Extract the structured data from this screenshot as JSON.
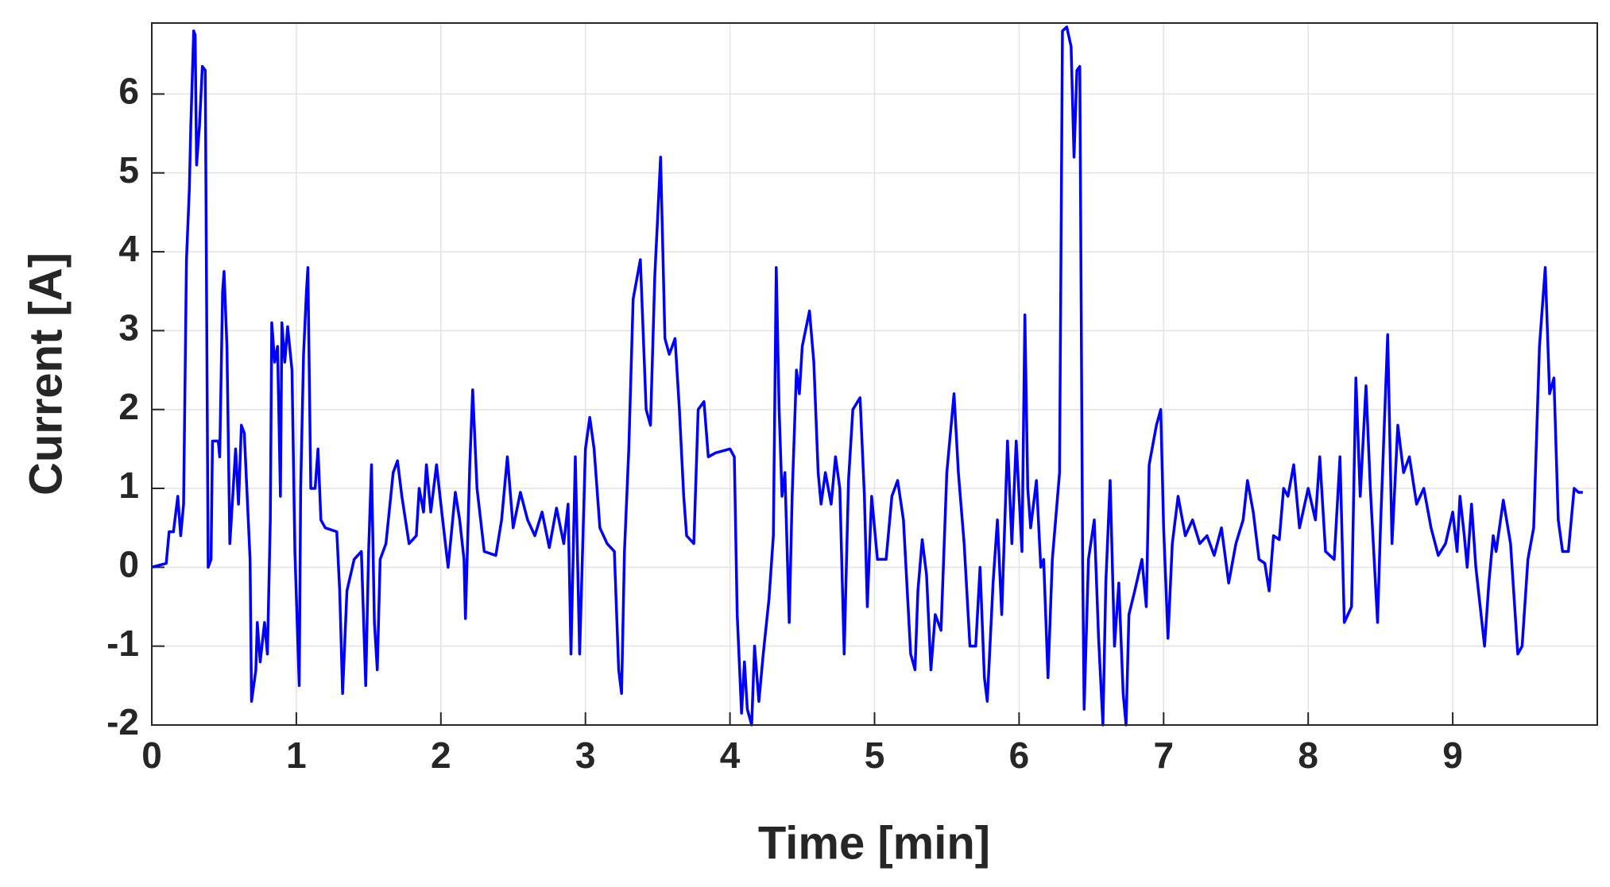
{
  "chart_data": {
    "type": "line",
    "x_label": "Time [min]",
    "y_label": "Current [A]",
    "xlim": [
      0,
      10
    ],
    "xticks": [
      0,
      1,
      2,
      3,
      4,
      5,
      6,
      7,
      8,
      9
    ],
    "ylim": [
      -2,
      6.9
    ],
    "yticks": [
      -2,
      -1,
      0,
      1,
      2,
      3,
      4,
      5,
      6
    ],
    "grid": true,
    "color": "#0000ff",
    "x": [
      0,
      0.1,
      0.12,
      0.15,
      0.18,
      0.2,
      0.22,
      0.24,
      0.26,
      0.27,
      0.29,
      0.3,
      0.31,
      0.33,
      0.35,
      0.37,
      0.39,
      0.41,
      0.42,
      0.46,
      0.47,
      0.49,
      0.5,
      0.52,
      0.54,
      0.56,
      0.58,
      0.6,
      0.62,
      0.64,
      0.66,
      0.68,
      0.69,
      0.72,
      0.73,
      0.75,
      0.78,
      0.8,
      0.82,
      0.83,
      0.85,
      0.87,
      0.89,
      0.9,
      0.92,
      0.94,
      0.97,
      0.99,
      1.02,
      1.03,
      1.05,
      1.07,
      1.08,
      1.1,
      1.13,
      1.15,
      1.17,
      1.2,
      1.28,
      1.3,
      1.32,
      1.35,
      1.4,
      1.45,
      1.48,
      1.5,
      1.52,
      1.54,
      1.56,
      1.58,
      1.62,
      1.67,
      1.7,
      1.73,
      1.78,
      1.83,
      1.85,
      1.88,
      1.9,
      1.93,
      1.97,
      2.0,
      2.05,
      2.1,
      2.13,
      2.16,
      2.17,
      2.2,
      2.22,
      2.25,
      2.3,
      2.38,
      2.42,
      2.46,
      2.5,
      2.55,
      2.6,
      2.65,
      2.7,
      2.75,
      2.8,
      2.85,
      2.88,
      2.9,
      2.93,
      2.96,
      3.0,
      3.03,
      3.06,
      3.1,
      3.15,
      3.2,
      3.23,
      3.25,
      3.27,
      3.3,
      3.33,
      3.38,
      3.42,
      3.45,
      3.48,
      3.52,
      3.55,
      3.58,
      3.62,
      3.65,
      3.68,
      3.7,
      3.75,
      3.78,
      3.82,
      3.85,
      3.9,
      4.0,
      4.03,
      4.05,
      4.08,
      4.1,
      4.12,
      4.15,
      4.17,
      4.2,
      4.23,
      4.27,
      4.3,
      4.32,
      4.34,
      4.36,
      4.38,
      4.41,
      4.43,
      4.46,
      4.48,
      4.5,
      4.55,
      4.58,
      4.61,
      4.63,
      4.66,
      4.7,
      4.73,
      4.76,
      4.79,
      4.82,
      4.85,
      4.9,
      4.93,
      4.95,
      4.98,
      5.02,
      5.08,
      5.12,
      5.16,
      5.2,
      5.25,
      5.28,
      5.3,
      5.33,
      5.36,
      5.39,
      5.42,
      5.46,
      5.5,
      5.55,
      5.58,
      5.62,
      5.66,
      5.7,
      5.73,
      5.76,
      5.78,
      5.82,
      5.85,
      5.88,
      5.92,
      5.95,
      5.98,
      6.02,
      6.04,
      6.06,
      6.08,
      6.12,
      6.15,
      6.17,
      6.2,
      6.23,
      6.28,
      6.3,
      6.33,
      6.36,
      6.38,
      6.4,
      6.42,
      6.44,
      6.45,
      6.48,
      6.52,
      6.55,
      6.58,
      6.6,
      6.63,
      6.66,
      6.69,
      6.72,
      6.74,
      6.76,
      6.8,
      6.85,
      6.88,
      6.9,
      6.95,
      6.98,
      7.0,
      7.03,
      7.06,
      7.1,
      7.15,
      7.2,
      7.25,
      7.3,
      7.35,
      7.4,
      7.45,
      7.5,
      7.55,
      7.58,
      7.62,
      7.66,
      7.7,
      7.73,
      7.76,
      7.8,
      7.83,
      7.86,
      7.9,
      7.94,
      8.0,
      8.05,
      8.08,
      8.12,
      8.18,
      8.22,
      8.25,
      8.3,
      8.33,
      8.36,
      8.4,
      8.43,
      8.48,
      8.5,
      8.55,
      8.58,
      8.62,
      8.66,
      8.7,
      8.75,
      8.8,
      8.85,
      8.9,
      8.95,
      9.0,
      9.03,
      9.05,
      9.08,
      9.1,
      9.13,
      9.16,
      9.22,
      9.25,
      9.28,
      9.3,
      9.35,
      9.4,
      9.45,
      9.48,
      9.52,
      9.56,
      9.6,
      9.64,
      9.67,
      9.7,
      9.73,
      9.76,
      9.8,
      9.84,
      9.87,
      9.9
    ],
    "values": [
      0,
      0.05,
      0.45,
      0.45,
      0.9,
      0.4,
      0.8,
      3.9,
      4.8,
      5.6,
      6.8,
      6.75,
      5.1,
      5.6,
      6.35,
      6.3,
      0,
      0.1,
      1.6,
      1.6,
      1.4,
      3.5,
      3.75,
      2.8,
      0.3,
      0.9,
      1.5,
      0.8,
      1.8,
      1.7,
      0.9,
      0.1,
      -1.7,
      -1.3,
      -0.7,
      -1.2,
      -0.7,
      -1.1,
      0.6,
      3.1,
      2.6,
      2.8,
      0.9,
      3.1,
      2.6,
      3.05,
      2.5,
      0.2,
      -1.5,
      1,
      2.7,
      3.5,
      3.8,
      1,
      1,
      1.5,
      0.6,
      0.5,
      0.45,
      -0.3,
      -1.6,
      -0.3,
      0.1,
      0.2,
      -1.5,
      0.2,
      1.3,
      -0.7,
      -1.3,
      0.1,
      0.3,
      1.2,
      1.35,
      0.9,
      0.3,
      0.4,
      1,
      0.7,
      1.3,
      0.7,
      1.3,
      0.8,
      0,
      0.95,
      0.6,
      0.1,
      -0.65,
      1.3,
      2.25,
      1,
      0.2,
      0.15,
      0.6,
      1.4,
      0.5,
      0.95,
      0.6,
      0.4,
      0.7,
      0.25,
      0.75,
      0.3,
      0.8,
      -1.1,
      1.4,
      -1.1,
      1.5,
      1.9,
      1.5,
      0.5,
      0.3,
      0.2,
      -1.3,
      -1.6,
      0.2,
      1.5,
      3.4,
      3.9,
      2,
      1.8,
      3.7,
      5.2,
      2.9,
      2.7,
      2.9,
      2,
      0.9,
      0.4,
      0.3,
      2,
      2.1,
      1.4,
      1.45,
      1.5,
      1.4,
      -0.6,
      -1.85,
      -1.2,
      -1.8,
      -2,
      -1,
      -1.7,
      -1.1,
      -0.4,
      0.4,
      3.8,
      2,
      0.9,
      1.2,
      -0.7,
      0.9,
      2.5,
      2.2,
      2.8,
      3.25,
      2.6,
      1.2,
      0.8,
      1.2,
      0.8,
      1.4,
      1,
      -1.1,
      1.1,
      2,
      2.15,
      0.9,
      -0.5,
      0.9,
      0.1,
      0.1,
      0.9,
      1.1,
      0.6,
      -1.1,
      -1.3,
      -0.3,
      0.35,
      -0.1,
      -1.3,
      -0.6,
      -0.8,
      1.2,
      2.2,
      1.2,
      0.3,
      -1,
      -1,
      0,
      -1.4,
      -1.7,
      -0.2,
      0.6,
      -0.6,
      1.6,
      0.3,
      1.6,
      0.2,
      3.2,
      1,
      0.5,
      1.1,
      0,
      0.1,
      -1.4,
      0.1,
      1.2,
      6.8,
      6.85,
      6.6,
      5.2,
      6.3,
      6.35,
      0,
      -1.8,
      0.1,
      0.6,
      -0.9,
      -2,
      -0.2,
      1.1,
      -1,
      -0.2,
      -1.6,
      -2,
      -0.6,
      -0.3,
      0.1,
      -0.5,
      1.3,
      1.8,
      2,
      0.5,
      -0.9,
      0.3,
      0.9,
      0.4,
      0.6,
      0.3,
      0.4,
      0.15,
      0.5,
      -0.2,
      0.3,
      0.6,
      1.1,
      0.7,
      0.1,
      0.05,
      -0.3,
      0.4,
      0.35,
      1,
      0.9,
      1.3,
      0.5,
      1,
      0.6,
      1.4,
      0.2,
      0.1,
      1.4,
      -0.7,
      -0.5,
      2.4,
      0.9,
      2.3,
      1,
      -0.7,
      0.5,
      2.95,
      0.3,
      1.8,
      1.2,
      1.4,
      0.8,
      1,
      0.5,
      0.15,
      0.3,
      0.7,
      0.2,
      0.9,
      0.4,
      0,
      0.8,
      0,
      -1,
      -0.2,
      0.4,
      0.2,
      0.85,
      0.3,
      -1.1,
      -1,
      0.1,
      0.5,
      2.8,
      3.8,
      2.2,
      2.4,
      0.6,
      0.2,
      0.2,
      1,
      0.95,
      0.95
    ]
  }
}
